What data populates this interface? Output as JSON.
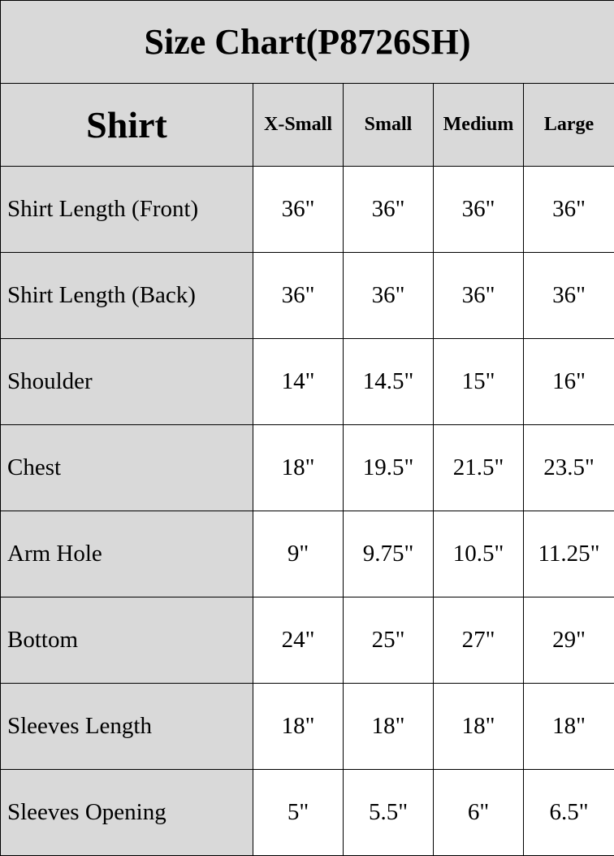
{
  "title": "Size Chart(P8726SH)",
  "header": {
    "section": "Shirt",
    "sizes": [
      "X-Small",
      "Small",
      "Medium",
      "Large"
    ]
  },
  "rows": [
    {
      "label": "Shirt Length (Front)",
      "values": [
        "36\"",
        "36\"",
        "36\"",
        "36\""
      ]
    },
    {
      "label": "Shirt Length (Back)",
      "values": [
        "36\"",
        "36\"",
        "36\"",
        "36\""
      ]
    },
    {
      "label": "Shoulder",
      "values": [
        "14\"",
        "14.5\"",
        "15\"",
        "16\""
      ]
    },
    {
      "label": "Chest",
      "values": [
        "18\"",
        "19.5\"",
        "21.5\"",
        "23.5\""
      ]
    },
    {
      "label": "Arm Hole",
      "values": [
        "9\"",
        "9.75\"",
        "10.5\"",
        "11.25\""
      ]
    },
    {
      "label": "Bottom",
      "values": [
        "24\"",
        "25\"",
        "27\"",
        "29\""
      ]
    },
    {
      "label": "Sleeves Length",
      "values": [
        "18\"",
        "18\"",
        "18\"",
        "18\""
      ]
    },
    {
      "label": "Sleeves Opening",
      "values": [
        "5\"",
        "5.5\"",
        "6\"",
        "6.5\""
      ]
    }
  ],
  "colors": {
    "header_bg": "#d9d9d9",
    "cell_bg": "#ffffff",
    "border": "#000000"
  }
}
